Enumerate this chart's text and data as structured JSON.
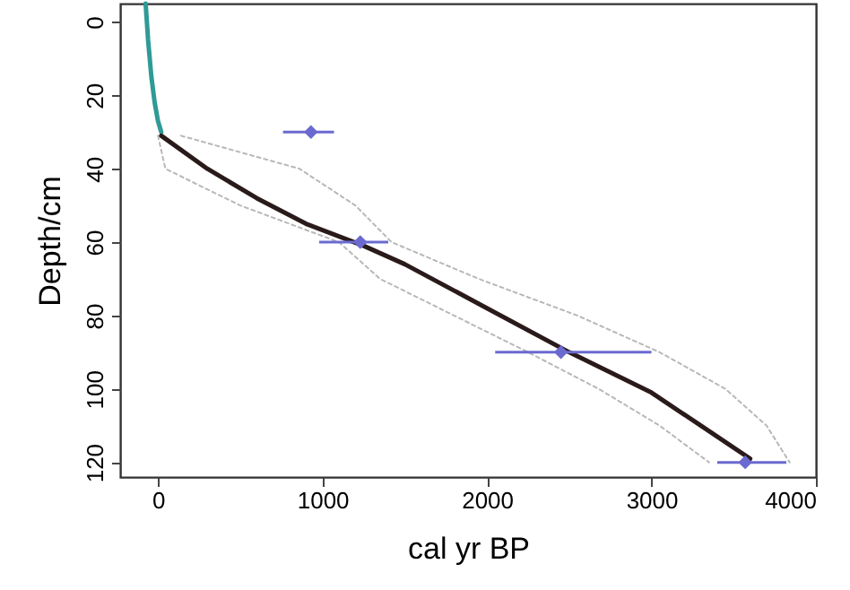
{
  "chart_data": {
    "type": "line",
    "xlabel": "cal yr BP",
    "ylabel": "Depth/cm",
    "xlim": [
      -230,
      4000
    ],
    "xticks": [
      0,
      1000,
      2000,
      3000,
      4000
    ],
    "ylim": [
      124,
      -5
    ],
    "yticks": [
      0,
      20,
      40,
      60,
      80,
      100,
      120
    ],
    "grid": false,
    "series": [
      {
        "color": "#2f9a96",
        "x": [
          -75,
          -60,
          -40,
          -20,
          0,
          20
        ],
        "values": [
          -5,
          5,
          15,
          22,
          27,
          30
        ]
      },
      {
        "type": "line",
        "color": "#b8b8b8",
        "line_style": "dotted",
        "x": [
          0,
          45,
          500,
          1100,
          1350,
          1800,
          2250,
          2680,
          3050,
          3350
        ],
        "values": [
          31,
          40,
          50,
          60,
          70,
          80,
          90,
          100,
          110,
          120
        ]
      },
      {
        "type": "line",
        "color": "#b8b8b8",
        "line_style": "dotted",
        "x": [
          140,
          860,
          1200,
          1420,
          1950,
          2550,
          3050,
          3450,
          3700,
          3840
        ],
        "values": [
          31,
          40,
          50,
          60,
          70,
          80,
          90,
          100,
          110,
          120
        ]
      },
      {
        "color": "#2a1a1a",
        "x": [
          20,
          300,
          600,
          900,
          1250,
          1500,
          2000,
          2500,
          3000,
          3300,
          3600
        ],
        "values": [
          31,
          40,
          48,
          55,
          61,
          66,
          78,
          90,
          101,
          110,
          119
        ]
      },
      {
        "type": "scatter",
        "color": "#6a6ad0",
        "marker": "diamond",
        "x": [
          930,
          1230,
          2450,
          3570
        ],
        "values": [
          30,
          60,
          90,
          120
        ],
        "xerrors": [
          [
            760,
            1070
          ],
          [
            980,
            1400
          ],
          [
            2050,
            3000
          ],
          [
            3400,
            3820
          ]
        ]
      }
    ]
  }
}
